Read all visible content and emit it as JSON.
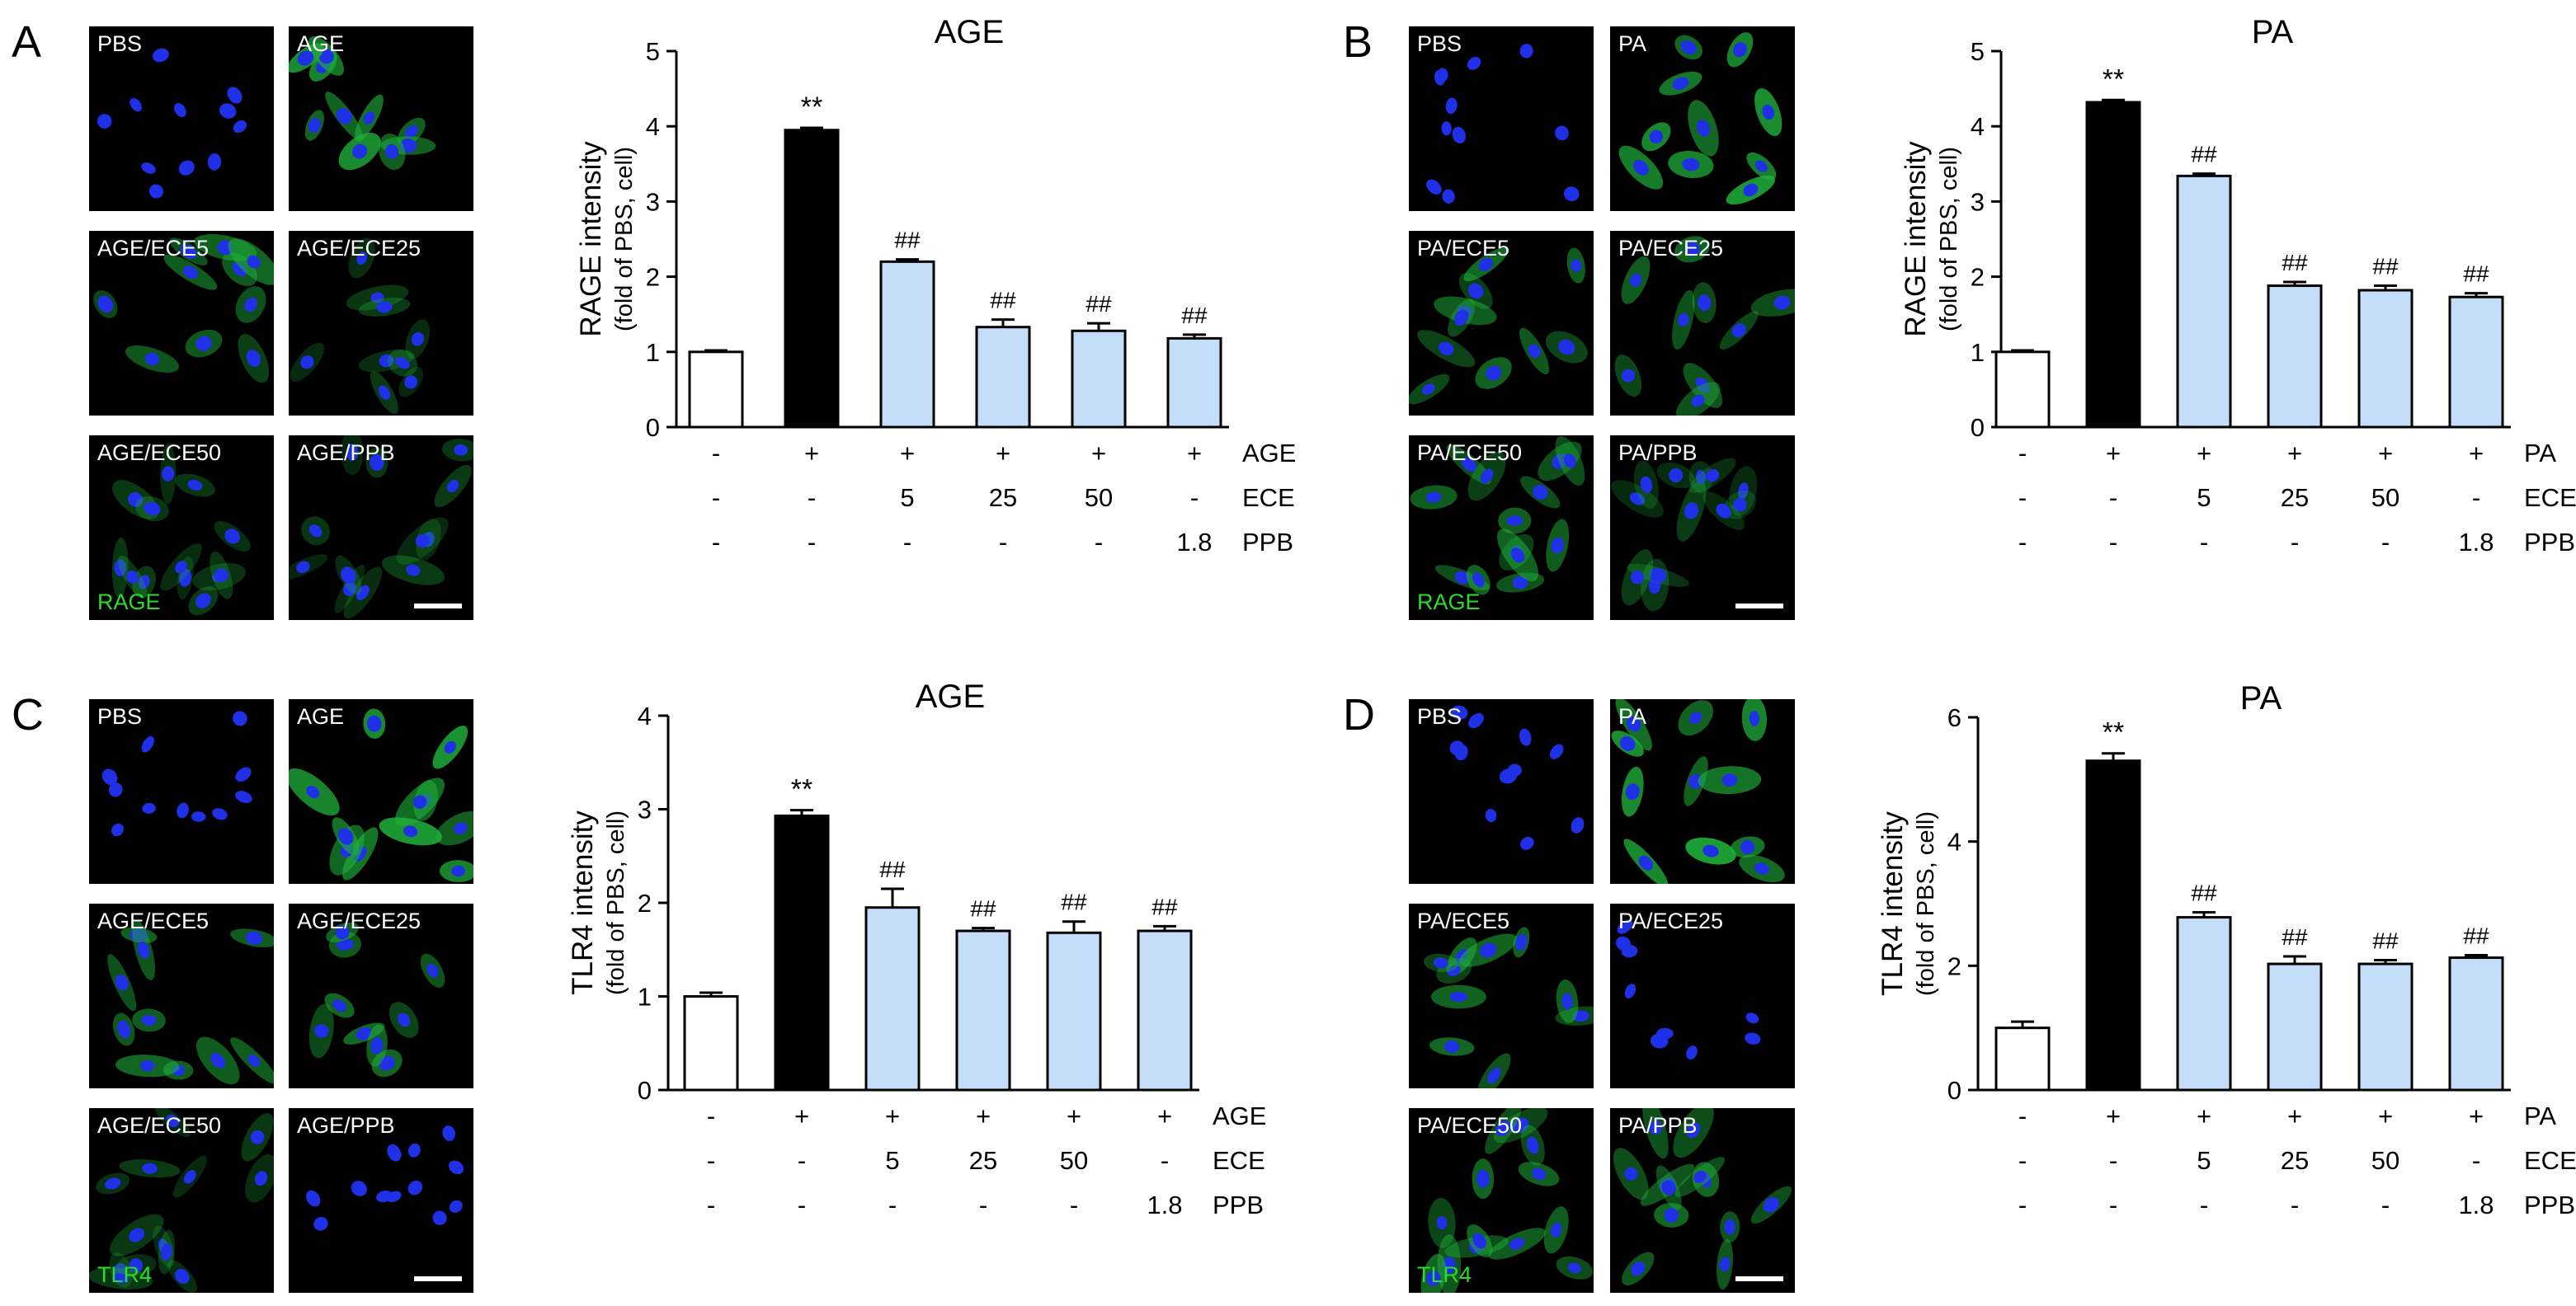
{
  "panels": [
    {
      "letter": "A",
      "images": [
        "PBS",
        "AGE",
        "AGE/ECE5",
        "AGE/ECE25",
        "AGE/ECE50",
        "AGE/PPB"
      ],
      "stain": "RAGE",
      "stain_color": "#2bdc2b"
    },
    {
      "letter": "B",
      "images": [
        "PBS",
        "PA",
        "PA/ECE5",
        "PA/ECE25",
        "PA/ECE50",
        "PA/PPB"
      ],
      "stain": "RAGE",
      "stain_color": "#2bdc2b"
    },
    {
      "letter": "C",
      "images": [
        "PBS",
        "AGE",
        "AGE/ECE5",
        "AGE/ECE25",
        "AGE/ECE50",
        "AGE/PPB"
      ],
      "stain": "TLR4",
      "stain_color": "#2bdc2b"
    },
    {
      "letter": "D",
      "images": [
        "PBS",
        "PA",
        "PA/ECE5",
        "PA/ECE25",
        "PA/ECE50",
        "PA/PPB"
      ],
      "stain": "TLR4",
      "stain_color": "#2bdc2b"
    }
  ],
  "chart_data": [
    {
      "type": "bar",
      "title": "AGE",
      "ylabel": "RAGE intensity",
      "ylabel2": "(fold of PBS, cell)",
      "ylim": [
        0,
        5
      ],
      "yticks": [
        "0",
        "1",
        "2",
        "3",
        "4",
        "5"
      ],
      "values": [
        1.0,
        3.95,
        2.2,
        1.33,
        1.28,
        1.18
      ],
      "errors": [
        0.02,
        0.03,
        0.03,
        0.1,
        0.1,
        0.05
      ],
      "annotations": [
        "",
        "**",
        "##",
        "##",
        "##",
        "##"
      ],
      "bar_colors": [
        "#ffffff",
        "#000000",
        "#c4defa",
        "#c4defa",
        "#c4defa",
        "#c4defa"
      ],
      "treatment_rows": [
        {
          "name": "AGE",
          "values": [
            "-",
            "+",
            "+",
            "+",
            "+",
            "+"
          ]
        },
        {
          "name": "ECE",
          "values": [
            "-",
            "-",
            "5",
            "25",
            "50",
            "-"
          ]
        },
        {
          "name": "PPB",
          "values": [
            "-",
            "-",
            "-",
            "-",
            "-",
            "1.8"
          ]
        }
      ]
    },
    {
      "type": "bar",
      "title": "PA",
      "ylabel": "RAGE intensity",
      "ylabel2": "(fold of PBS, cell)",
      "ylim": [
        0,
        5
      ],
      "yticks": [
        "0",
        "1",
        "2",
        "3",
        "4",
        "5"
      ],
      "values": [
        1.0,
        4.32,
        3.34,
        1.88,
        1.82,
        1.73
      ],
      "errors": [
        0.02,
        0.03,
        0.03,
        0.05,
        0.06,
        0.05
      ],
      "annotations": [
        "",
        "**",
        "##",
        "##",
        "##",
        "##"
      ],
      "bar_colors": [
        "#ffffff",
        "#000000",
        "#c4defa",
        "#c4defa",
        "#c4defa",
        "#c4defa"
      ],
      "treatment_rows": [
        {
          "name": "PA",
          "values": [
            "-",
            "+",
            "+",
            "+",
            "+",
            "+"
          ]
        },
        {
          "name": "ECE",
          "values": [
            "-",
            "-",
            "5",
            "25",
            "50",
            "-"
          ]
        },
        {
          "name": "PPB",
          "values": [
            "-",
            "-",
            "-",
            "-",
            "-",
            "1.8"
          ]
        }
      ]
    },
    {
      "type": "bar",
      "title": "AGE",
      "ylabel": "TLR4 intensity",
      "ylabel2": "(fold of PBS, cell)",
      "ylim": [
        0,
        4
      ],
      "yticks": [
        "0",
        "1",
        "2",
        "3",
        "4"
      ],
      "values": [
        1.0,
        2.93,
        1.95,
        1.7,
        1.68,
        1.7
      ],
      "errors": [
        0.04,
        0.06,
        0.2,
        0.03,
        0.12,
        0.05
      ],
      "annotations": [
        "",
        "**",
        "##",
        "##",
        "##",
        "##"
      ],
      "bar_colors": [
        "#ffffff",
        "#000000",
        "#c4defa",
        "#c4defa",
        "#c4defa",
        "#c4defa"
      ],
      "treatment_rows": [
        {
          "name": "AGE",
          "values": [
            "-",
            "+",
            "+",
            "+",
            "+",
            "+"
          ]
        },
        {
          "name": "ECE",
          "values": [
            "-",
            "-",
            "5",
            "25",
            "50",
            "-"
          ]
        },
        {
          "name": "PPB",
          "values": [
            "-",
            "-",
            "-",
            "-",
            "-",
            "1.8"
          ]
        }
      ]
    },
    {
      "type": "bar",
      "title": "PA",
      "ylabel": "TLR4 intensity",
      "ylabel2": "(fold of PBS, cell)",
      "ylim": [
        0,
        6
      ],
      "yticks": [
        "0",
        "2",
        "4",
        "6"
      ],
      "values": [
        1.0,
        5.3,
        2.78,
        2.03,
        2.03,
        2.13
      ],
      "errors": [
        0.1,
        0.12,
        0.08,
        0.12,
        0.06,
        0.04
      ],
      "annotations": [
        "",
        "**",
        "##",
        "##",
        "##",
        "##"
      ],
      "bar_colors": [
        "#ffffff",
        "#000000",
        "#c4defa",
        "#c4defa",
        "#c4defa",
        "#c4defa"
      ],
      "treatment_rows": [
        {
          "name": "PA",
          "values": [
            "-",
            "+",
            "+",
            "+",
            "+",
            "+"
          ]
        },
        {
          "name": "ECE",
          "values": [
            "-",
            "-",
            "5",
            "25",
            "50",
            "-"
          ]
        },
        {
          "name": "PPB",
          "values": [
            "-",
            "-",
            "-",
            "-",
            "-",
            "1.8"
          ]
        }
      ]
    }
  ]
}
